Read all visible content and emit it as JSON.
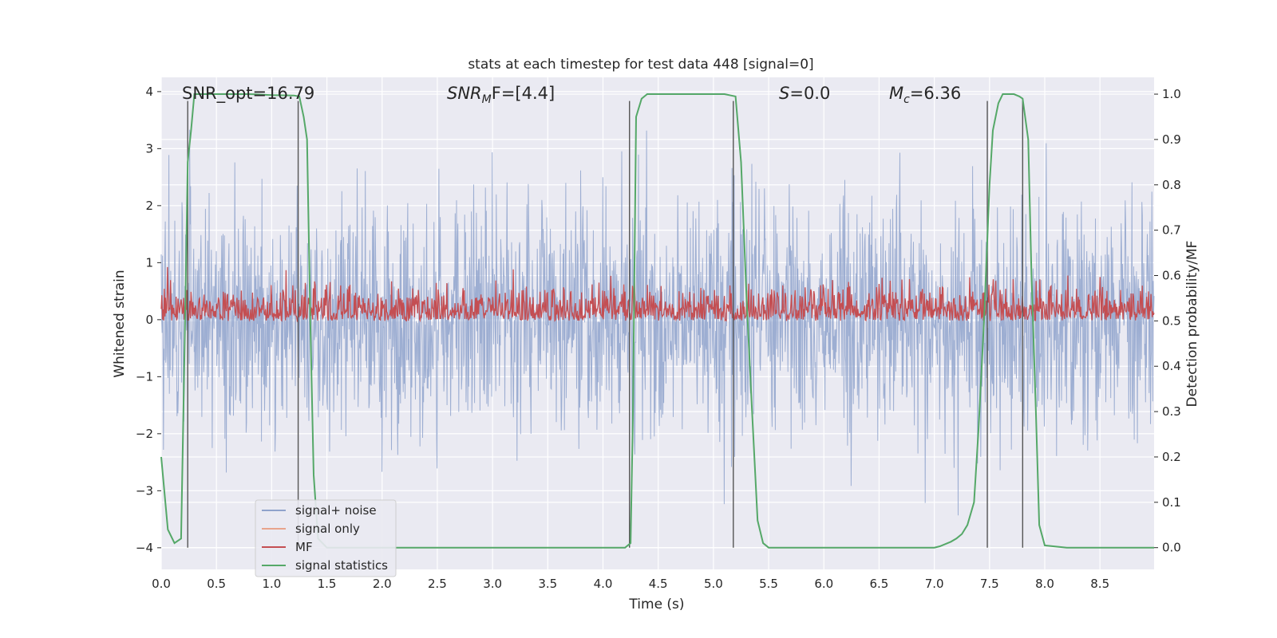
{
  "chart_data": {
    "type": "line",
    "title": "stats at each timestep for test data 448 [signal=0]",
    "xlabel": "Time (s)",
    "ylabel_left": "Whitened strain",
    "ylabel_right": "Detection probability/MF",
    "xlim": [
      0.0,
      8.99
    ],
    "ylim_left": [
      -4.38,
      4.25
    ],
    "ylim_right": [
      -0.048,
      1.037
    ],
    "x_ticks": [
      "0.0",
      "0.5",
      "1.0",
      "1.5",
      "2.0",
      "2.5",
      "3.0",
      "3.5",
      "4.0",
      "4.5",
      "5.0",
      "5.5",
      "6.0",
      "6.5",
      "7.0",
      "7.5",
      "8.0",
      "8.5"
    ],
    "y_ticks_left": [
      "4",
      "3",
      "2",
      "1",
      "0",
      "−1",
      "−2",
      "−3",
      "−4"
    ],
    "y_ticks_right": [
      "1.0",
      "0.9",
      "0.8",
      "0.7",
      "0.6",
      "0.5",
      "0.4",
      "0.3",
      "0.2",
      "0.1",
      "0.0"
    ],
    "grid": true,
    "legend_position": "lower-left",
    "annotations": {
      "snr_opt": "SNR_opt=16.79",
      "snr_mf_main": "SNR",
      "snr_mf_sub": "M",
      "snr_mf_rest": "F=[4.4]",
      "s_main": "S",
      "s_rest": "=0.0",
      "mc_main": "M",
      "mc_sub": "c",
      "mc_rest": "=6.36"
    },
    "series": [
      {
        "name": "signal+ noise",
        "color": "#8fa3cc",
        "axis": "left",
        "noise_amplitude_sigma": 1.0,
        "x_range": [
          0.0,
          8.99
        ]
      },
      {
        "name": "signal only",
        "color": "#e8a48c",
        "axis": "left",
        "values": []
      },
      {
        "name": "MF",
        "color": "#c44e52",
        "axis": "right",
        "baseline": 0.52,
        "range": [
          0.5,
          0.62
        ]
      },
      {
        "name": "signal statistics",
        "color": "#55a868",
        "axis": "right",
        "x": [
          0.0,
          0.06,
          0.12,
          0.18,
          0.22,
          0.24,
          0.27,
          0.3,
          0.33,
          0.5,
          0.8,
          1.0,
          1.2,
          1.25,
          1.29,
          1.32,
          1.35,
          1.38,
          1.42,
          1.5,
          1.7,
          2.0,
          3.0,
          4.0,
          4.2,
          4.25,
          4.27,
          4.3,
          4.35,
          4.4,
          4.6,
          5.0,
          5.1,
          5.2,
          5.25,
          5.3,
          5.35,
          5.4,
          5.45,
          5.5,
          5.7,
          6.0,
          6.5,
          7.0,
          7.05,
          7.1,
          7.15,
          7.2,
          7.25,
          7.3,
          7.36,
          7.4,
          7.45,
          7.5,
          7.53,
          7.58,
          7.62,
          7.67,
          7.72,
          7.77,
          7.8,
          7.85,
          7.88,
          7.92,
          7.95,
          8.0,
          8.2,
          8.6,
          8.99
        ],
        "y": [
          0.2,
          0.04,
          0.01,
          0.02,
          0.55,
          0.85,
          0.92,
          1.0,
          1.0,
          1.0,
          1.0,
          0.998,
          0.997,
          0.995,
          0.95,
          0.9,
          0.5,
          0.16,
          0.02,
          0.0,
          0.0,
          0.0,
          0.0,
          0.0,
          0.0,
          0.01,
          0.28,
          0.95,
          0.99,
          1.0,
          1.0,
          1.0,
          1.0,
          0.995,
          0.85,
          0.55,
          0.3,
          0.06,
          0.01,
          0.0,
          0.0,
          0.0,
          0.0,
          0.0,
          0.003,
          0.008,
          0.013,
          0.02,
          0.03,
          0.05,
          0.1,
          0.26,
          0.5,
          0.8,
          0.92,
          0.98,
          1.0,
          1.0,
          1.0,
          0.995,
          0.99,
          0.9,
          0.6,
          0.3,
          0.05,
          0.005,
          0.0,
          0.0,
          0.0
        ]
      }
    ],
    "vertical_markers": [
      0.24,
      1.24,
      4.24,
      5.18,
      7.48,
      7.8
    ]
  }
}
